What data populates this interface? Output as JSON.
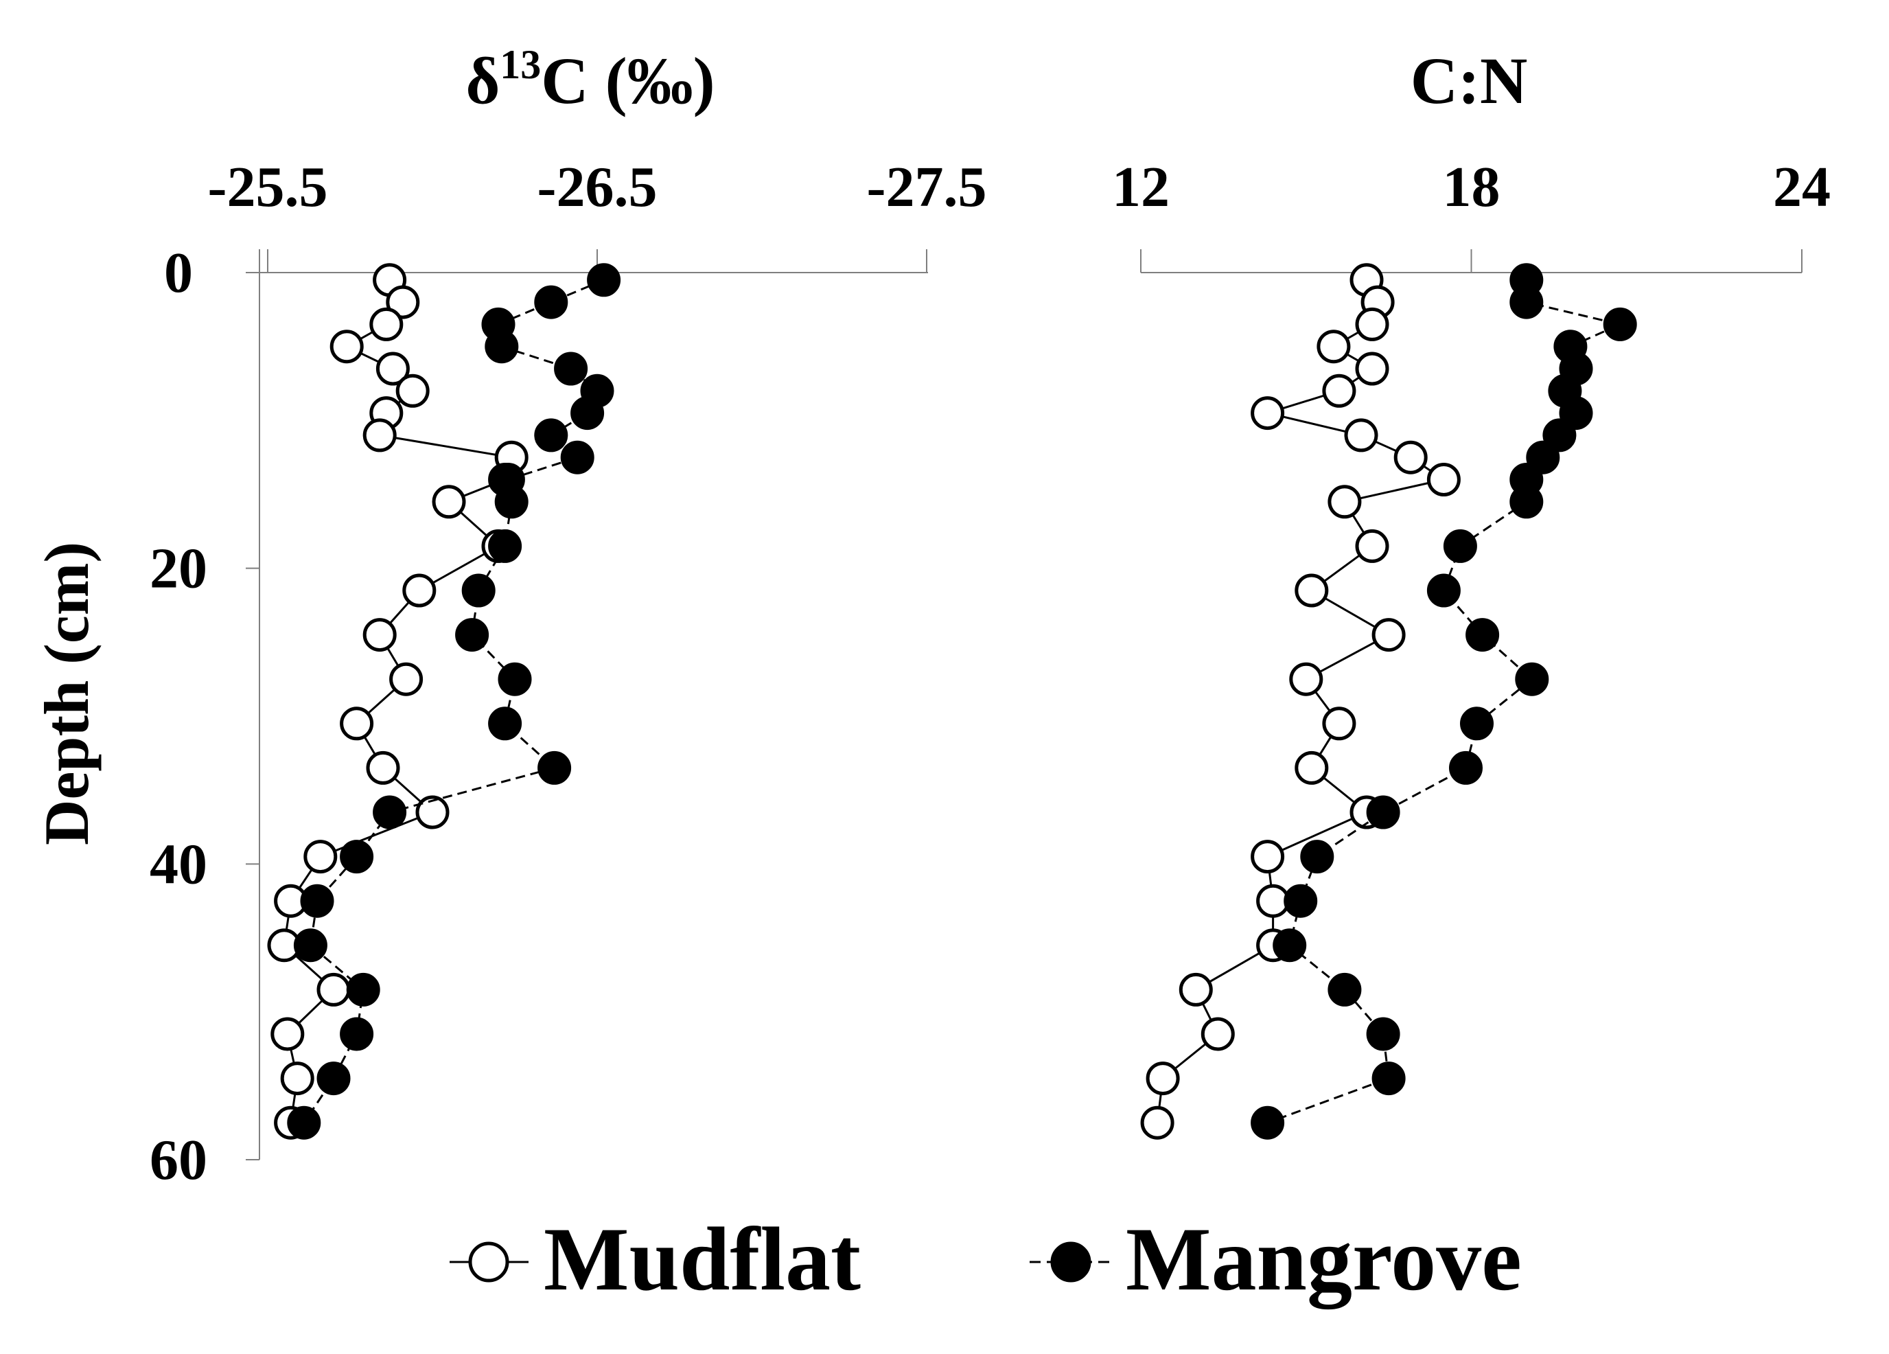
{
  "chart_data": [
    {
      "type": "scatter",
      "id": "d13c",
      "title": "δ13C (‰)",
      "title_base": "δ",
      "title_sup": "13",
      "title_rest": "C (‰)",
      "xlim": [
        -25.5,
        -27.5
      ],
      "xticks": [
        "-25.5",
        "-26.5",
        "-27.5"
      ],
      "xaxis_position": "top",
      "ylabel": "Depth (cm)",
      "ylim": [
        0,
        60
      ],
      "yticks": [
        "0",
        "20",
        "40",
        "60"
      ],
      "series": [
        {
          "name": "Mudflat",
          "marker": "open-circle",
          "line": "solid",
          "points": [
            [
              -25.87,
              0.5
            ],
            [
              -25.91,
              2.0
            ],
            [
              -25.86,
              3.5
            ],
            [
              -25.74,
              5.0
            ],
            [
              -25.88,
              6.5
            ],
            [
              -25.94,
              8.0
            ],
            [
              -25.86,
              9.5
            ],
            [
              -25.84,
              11.0
            ],
            [
              -26.24,
              12.5
            ],
            [
              -26.22,
              14.0
            ],
            [
              -26.05,
              15.5
            ],
            [
              -26.2,
              18.5
            ],
            [
              -25.96,
              21.5
            ],
            [
              -25.84,
              24.5
            ],
            [
              -25.92,
              27.5
            ],
            [
              -25.77,
              30.5
            ],
            [
              -25.85,
              33.5
            ],
            [
              -26.0,
              36.5
            ],
            [
              -25.66,
              39.5
            ],
            [
              -25.57,
              42.5
            ],
            [
              -25.55,
              45.5
            ],
            [
              -25.7,
              48.5
            ],
            [
              -25.56,
              51.5
            ],
            [
              -25.59,
              54.5
            ],
            [
              -25.57,
              57.5
            ]
          ]
        },
        {
          "name": "Mangrove",
          "marker": "filled-circle",
          "line": "dashed",
          "points": [
            [
              -26.52,
              0.5
            ],
            [
              -26.36,
              2.0
            ],
            [
              -26.2,
              3.5
            ],
            [
              -26.21,
              5.0
            ],
            [
              -26.42,
              6.5
            ],
            [
              -26.5,
              8.0
            ],
            [
              -26.47,
              9.5
            ],
            [
              -26.36,
              11.0
            ],
            [
              -26.44,
              12.5
            ],
            [
              -26.23,
              14.0
            ],
            [
              -26.24,
              15.5
            ],
            [
              -26.22,
              18.5
            ],
            [
              -26.14,
              21.5
            ],
            [
              -26.12,
              24.5
            ],
            [
              -26.25,
              27.5
            ],
            [
              -26.22,
              30.5
            ],
            [
              -26.37,
              33.5
            ],
            [
              -25.87,
              36.5
            ],
            [
              -25.77,
              39.5
            ],
            [
              -25.65,
              42.5
            ],
            [
              -25.63,
              45.5
            ],
            [
              -25.79,
              48.5
            ],
            [
              -25.77,
              51.5
            ],
            [
              -25.7,
              54.5
            ],
            [
              -25.61,
              57.5
            ]
          ]
        }
      ]
    },
    {
      "type": "scatter",
      "id": "cn",
      "title": "C:N",
      "xlim": [
        12,
        24
      ],
      "xticks": [
        "12",
        "18",
        "24"
      ],
      "xaxis_position": "top",
      "ylim": [
        0,
        60
      ],
      "series": [
        {
          "name": "Mudflat",
          "marker": "open-circle",
          "line": "solid",
          "points": [
            [
              16.1,
              0.5
            ],
            [
              16.3,
              2.0
            ],
            [
              16.2,
              3.5
            ],
            [
              15.5,
              5.0
            ],
            [
              16.2,
              6.5
            ],
            [
              15.6,
              8.0
            ],
            [
              14.3,
              9.5
            ],
            [
              16.0,
              11.0
            ],
            [
              16.9,
              12.5
            ],
            [
              17.5,
              14.0
            ],
            [
              15.7,
              15.5
            ],
            [
              16.2,
              18.5
            ],
            [
              15.1,
              21.5
            ],
            [
              16.5,
              24.5
            ],
            [
              15.0,
              27.5
            ],
            [
              15.6,
              30.5
            ],
            [
              15.1,
              33.5
            ],
            [
              16.1,
              36.5
            ],
            [
              14.3,
              39.5
            ],
            [
              14.4,
              42.5
            ],
            [
              14.4,
              45.5
            ],
            [
              13.0,
              48.5
            ],
            [
              13.4,
              51.5
            ],
            [
              12.4,
              54.5
            ],
            [
              12.3,
              57.5
            ]
          ]
        },
        {
          "name": "Mangrove",
          "marker": "filled-circle",
          "line": "dashed",
          "points": [
            [
              19.0,
              0.5
            ],
            [
              19.0,
              2.0
            ],
            [
              20.7,
              3.5
            ],
            [
              19.8,
              5.0
            ],
            [
              19.9,
              6.5
            ],
            [
              19.7,
              8.0
            ],
            [
              19.9,
              9.5
            ],
            [
              19.6,
              11.0
            ],
            [
              19.3,
              12.5
            ],
            [
              19.0,
              14.0
            ],
            [
              19.0,
              15.5
            ],
            [
              17.8,
              18.5
            ],
            [
              17.5,
              21.5
            ],
            [
              18.2,
              24.5
            ],
            [
              19.1,
              27.5
            ],
            [
              18.1,
              30.5
            ],
            [
              17.9,
              33.5
            ],
            [
              16.4,
              36.5
            ],
            [
              15.2,
              39.5
            ],
            [
              14.9,
              42.5
            ],
            [
              14.7,
              45.5
            ],
            [
              15.7,
              48.5
            ],
            [
              16.4,
              51.5
            ],
            [
              16.5,
              54.5
            ],
            [
              14.3,
              57.5
            ]
          ]
        }
      ]
    }
  ],
  "legend": [
    {
      "label": "Mudflat",
      "marker": "open-circle",
      "line": "solid"
    },
    {
      "label": "Mangrove",
      "marker": "filled-circle",
      "line": "dashed"
    }
  ],
  "colors": {
    "marker_fill_filled": "#000000",
    "marker_fill_open": "#ffffff",
    "axis": "#7f7f7f",
    "line": "#000000"
  }
}
